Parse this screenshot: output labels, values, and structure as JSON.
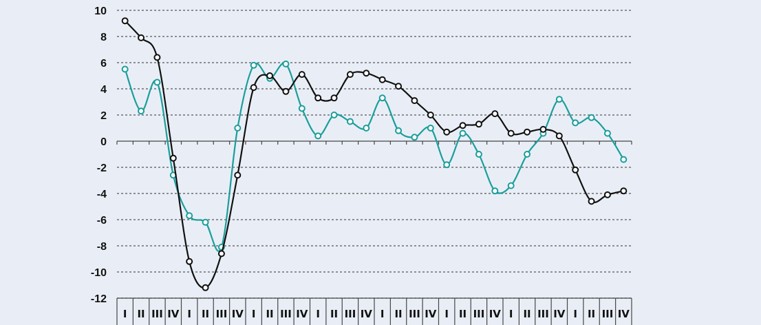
{
  "chart_data": {
    "type": "line",
    "title": "",
    "xlabel": "",
    "ylabel": "",
    "ylim": [
      -12,
      10
    ],
    "yticks": [
      10,
      8,
      6,
      4,
      2,
      0,
      -2,
      -4,
      -6,
      -8,
      -10,
      -12
    ],
    "grid": true,
    "categories": [
      "I",
      "II",
      "III",
      "IV",
      "I",
      "II",
      "III",
      "IV",
      "I",
      "II",
      "III",
      "IV",
      "I",
      "II",
      "III",
      "IV",
      "I",
      "II",
      "III",
      "IV",
      "I",
      "II",
      "III",
      "IV",
      "I",
      "II",
      "III",
      "IV",
      "I",
      "II",
      "III",
      "IV"
    ],
    "series": [
      {
        "color": "#111111",
        "values": [
          9.2,
          7.9,
          6.4,
          -1.3,
          -9.2,
          -11.2,
          -8.6,
          -2.6,
          4.1,
          5.0,
          3.8,
          5.1,
          3.3,
          3.3,
          5.1,
          5.2,
          4.7,
          4.2,
          3.1,
          2.0,
          0.7,
          1.2,
          1.3,
          2.1,
          0.6,
          0.7,
          0.9,
          0.4,
          -2.2,
          -4.6,
          -4.1,
          -3.8
        ]
      },
      {
        "color": "#1a9e9b",
        "values": [
          5.5,
          2.3,
          4.5,
          -2.6,
          -5.7,
          -6.2,
          -8.1,
          1.0,
          5.8,
          4.8,
          5.9,
          2.5,
          0.4,
          2.0,
          1.5,
          1.0,
          3.3,
          0.8,
          0.3,
          1.0,
          -1.8,
          0.6,
          -1.0,
          -3.8,
          -3.4,
          -1.0,
          0.6,
          3.2,
          1.4,
          1.8,
          0.6,
          -1.4
        ]
      }
    ]
  }
}
